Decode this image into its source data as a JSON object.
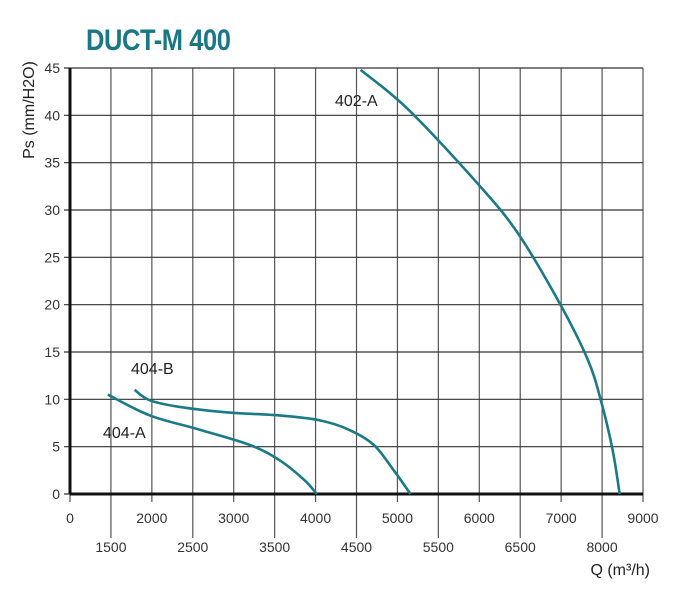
{
  "chart_data": {
    "type": "line",
    "title": "DUCT-M 400",
    "xlabel": "Q (m³/h)",
    "ylabel": "Ps (mm/H2O)",
    "ylim": [
      0,
      45
    ],
    "yticks": [
      0,
      5,
      10,
      15,
      20,
      25,
      30,
      35,
      40,
      45
    ],
    "xticks": [
      0,
      1500,
      2000,
      2500,
      3000,
      3500,
      4000,
      4500,
      5000,
      5500,
      6000,
      6500,
      7000,
      8000,
      9000
    ],
    "grid": true,
    "color": "#1a7a87",
    "series": [
      {
        "name": "402-A",
        "x": [
          4550,
          5135,
          5990,
          6475,
          6985,
          7650,
          7970,
          8260,
          8430
        ],
        "y": [
          44.8,
          40.6,
          32.7,
          27.5,
          20.1,
          14.2,
          9.9,
          4.6,
          0
        ]
      },
      {
        "name": "404-B",
        "x": [
          1790,
          1975,
          2340,
          2945,
          3555,
          4040,
          4405,
          4710,
          4955,
          5160
        ],
        "y": [
          11.0,
          9.9,
          9.2,
          8.6,
          8.3,
          7.8,
          6.8,
          5.2,
          2.5,
          0
        ]
      },
      {
        "name": "404-A",
        "x": [
          1385,
          1975,
          2580,
          3190,
          3555,
          3860,
          4015
        ],
        "y": [
          10.5,
          8.3,
          6.8,
          5.2,
          3.6,
          1.5,
          0
        ]
      }
    ]
  }
}
